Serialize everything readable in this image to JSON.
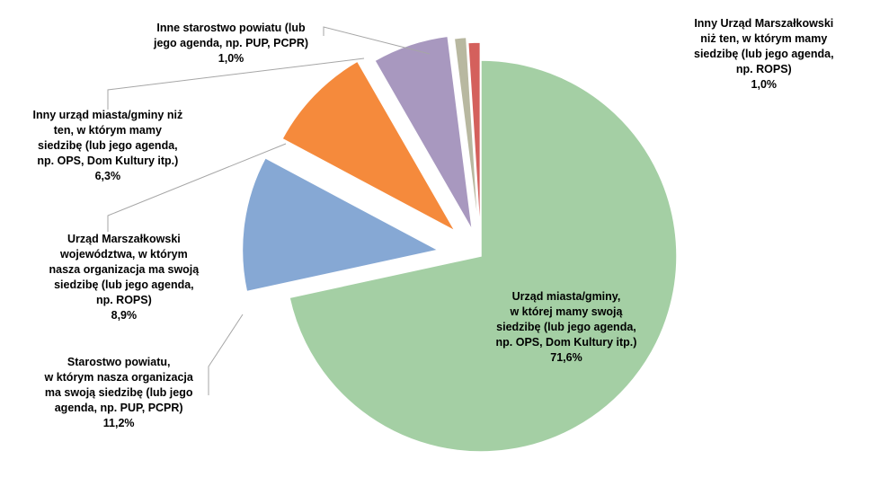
{
  "chart_data": {
    "type": "pie",
    "exploded": true,
    "slices": [
      {
        "label_lines": [
          "Urząd miasta/gminy,",
          "w której mamy swoją",
          "siedzibę (lub jego agenda,",
          "np. OPS, Dom Kultury itp.)"
        ],
        "value": 71.6,
        "value_label": "71,6%",
        "color": "#a4cfa4"
      },
      {
        "label_lines": [
          "Starostwo powiatu,",
          "w którym nasza organizacja",
          "ma swoją siedzibę (lub jego",
          "agenda, np. PUP, PCPR)"
        ],
        "value": 11.2,
        "value_label": "11,2%",
        "color": "#86a8d4"
      },
      {
        "label_lines": [
          "Urząd Marszałkowski",
          "województwa, w którym",
          "nasza organizacja ma swoją",
          "siedzibę (lub jego agenda,",
          "np. ROPS)"
        ],
        "value": 8.9,
        "value_label": "8,9%",
        "color": "#f58a3c"
      },
      {
        "label_lines": [
          "Inny urząd miasta/gminy niż",
          "ten, w którym mamy",
          "siedzibę (lub jego agenda,",
          "np. OPS, Dom Kultury itp.)"
        ],
        "value": 6.3,
        "value_label": "6,3%",
        "color": "#a898bf"
      },
      {
        "label_lines": [
          "Inne starostwo powiatu (lub",
          "jego agenda, np. PUP, PCPR)"
        ],
        "value": 1.0,
        "value_label": "1,0%",
        "color": "#b8b8a0"
      },
      {
        "label_lines": [
          "Inny Urząd Marszałkowski",
          "niż ten, w którym mamy",
          "siedzibę  (lub jego agenda,",
          "np. ROPS)"
        ],
        "value": 1.0,
        "value_label": "1,0%",
        "color": "#d4605c"
      }
    ]
  }
}
